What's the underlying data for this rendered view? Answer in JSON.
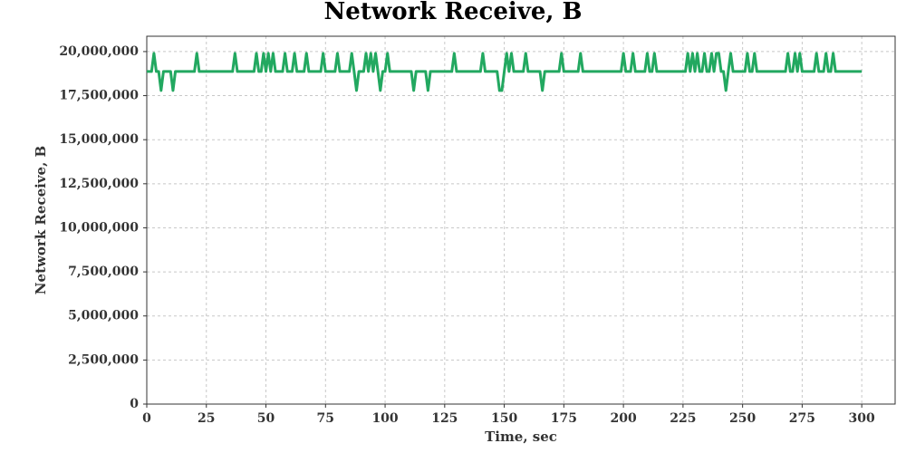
{
  "chart_data": {
    "type": "line",
    "title": "Network Receive, B",
    "x_label": "Time, sec",
    "y_label": "Network Receive, B",
    "xlim": [
      0,
      314
    ],
    "ylim": [
      0,
      20870000
    ],
    "xticks": [
      0,
      25,
      50,
      75,
      100,
      125,
      150,
      175,
      200,
      225,
      250,
      275,
      300
    ],
    "yticks": [
      0,
      {
        "value": 2500000,
        "label": "2,500,000"
      },
      {
        "value": 5000000,
        "label": "5,000,000"
      },
      {
        "value": 7500000,
        "label": "7,500,000"
      },
      {
        "value": 10000000,
        "label": "10,000,000"
      },
      {
        "value": 12500000,
        "label": "12,500,000"
      },
      {
        "value": 15000000,
        "label": "15,000,000"
      },
      {
        "value": 17500000,
        "label": "17,500,000"
      },
      {
        "value": 20000000,
        "label": "20,000,000"
      }
    ],
    "grid": true,
    "x": [
      0,
      2,
      3,
      4,
      5,
      6,
      7,
      10,
      11,
      12,
      20,
      21,
      22,
      36,
      37,
      38,
      45,
      46,
      47,
      48,
      49,
      50,
      51,
      52,
      53,
      54,
      57,
      58,
      59,
      61,
      62,
      63,
      66,
      67,
      68,
      73,
      74,
      75,
      79,
      80,
      81,
      85,
      86,
      87,
      88,
      89,
      91,
      92,
      93,
      94,
      95,
      96,
      97,
      98,
      99,
      100,
      101,
      102,
      111,
      112,
      113,
      117,
      118,
      119,
      128,
      129,
      130,
      140,
      141,
      142,
      147,
      148,
      149,
      150,
      151,
      152,
      153,
      154,
      158,
      159,
      160,
      165,
      166,
      167,
      173,
      174,
      175,
      181,
      182,
      183,
      199,
      200,
      201,
      203,
      204,
      205,
      209,
      210,
      211,
      212,
      213,
      214,
      226,
      227,
      228,
      229,
      230,
      231,
      232,
      233,
      234,
      235,
      236,
      237,
      238,
      239,
      240,
      241,
      242,
      243,
      244,
      245,
      246,
      251,
      252,
      253,
      254,
      255,
      256,
      268,
      269,
      270,
      271,
      272,
      273,
      274,
      275,
      280,
      281,
      282,
      284,
      285,
      286,
      287,
      288,
      289,
      300
    ],
    "series": [
      {
        "name": "Network Receive, B",
        "color": "#22a860",
        "values": [
          18870000,
          18870000,
          19900000,
          18870000,
          18870000,
          17790000,
          18870000,
          18870000,
          17790000,
          18870000,
          18870000,
          19900000,
          18870000,
          18870000,
          19900000,
          18870000,
          18870000,
          19900000,
          18870000,
          18870000,
          19900000,
          18870000,
          19900000,
          18870000,
          19900000,
          18870000,
          18870000,
          19900000,
          18870000,
          18870000,
          19900000,
          18870000,
          18870000,
          19900000,
          18870000,
          18870000,
          19900000,
          18870000,
          18870000,
          19900000,
          18870000,
          18870000,
          19900000,
          18870000,
          17790000,
          18870000,
          18870000,
          19900000,
          18870000,
          19900000,
          18870000,
          19900000,
          18870000,
          17790000,
          18870000,
          18870000,
          19900000,
          18870000,
          18870000,
          17790000,
          18870000,
          18870000,
          17790000,
          18870000,
          18870000,
          19900000,
          18870000,
          18870000,
          19900000,
          18870000,
          18870000,
          17790000,
          17790000,
          18870000,
          19900000,
          18870000,
          19900000,
          18870000,
          18870000,
          19900000,
          18870000,
          18870000,
          17790000,
          18870000,
          18870000,
          19900000,
          18870000,
          18870000,
          19900000,
          18870000,
          18870000,
          19900000,
          18870000,
          18870000,
          19900000,
          18870000,
          18870000,
          19900000,
          18870000,
          18870000,
          19900000,
          18870000,
          18870000,
          19900000,
          18870000,
          19900000,
          18870000,
          19900000,
          18870000,
          18870000,
          19900000,
          18870000,
          18870000,
          19900000,
          18870000,
          19900000,
          19900000,
          18870000,
          18870000,
          17790000,
          18870000,
          19900000,
          18870000,
          18870000,
          19900000,
          18870000,
          18870000,
          19900000,
          18870000,
          18870000,
          19900000,
          18870000,
          18870000,
          19900000,
          18870000,
          19900000,
          18870000,
          18870000,
          19900000,
          18870000,
          18870000,
          19900000,
          18870000,
          18870000,
          19900000,
          18870000,
          18870000
        ]
      }
    ]
  }
}
